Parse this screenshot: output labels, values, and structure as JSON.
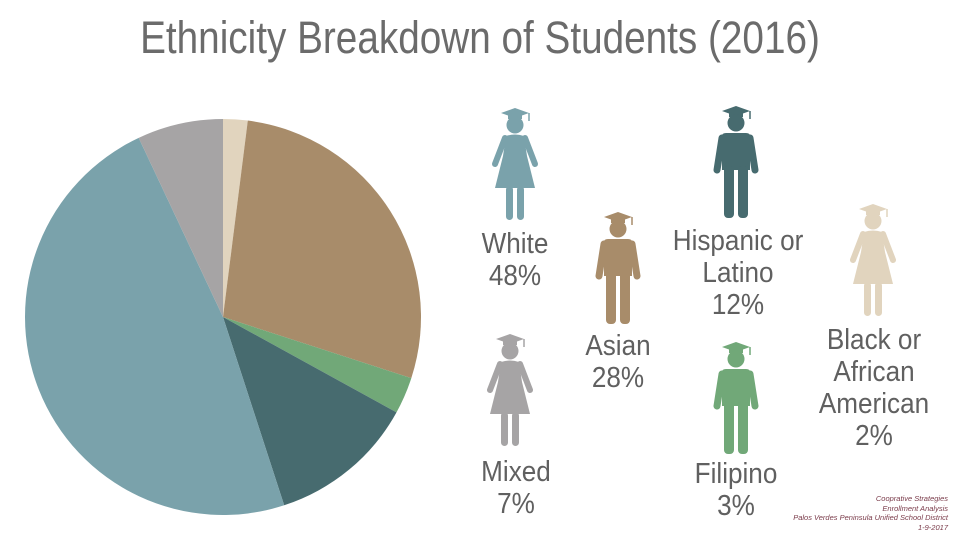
{
  "title": "Ethnicity Breakdown of Students (2016)",
  "chart_data": {
    "type": "pie",
    "title": "Ethnicity Breakdown of Students (2016)",
    "categories": [
      "White",
      "Asian",
      "Hispanic or Latino",
      "Black or African American",
      "Mixed",
      "Filipino"
    ],
    "values": [
      48,
      28,
      12,
      2,
      7,
      3
    ],
    "unit": "%",
    "slices": [
      {
        "category": "Black or African American",
        "value": 2,
        "color": "#e1d4be"
      },
      {
        "category": "Asian",
        "value": 28,
        "color": "#a88c6a"
      },
      {
        "category": "Filipino",
        "value": 3,
        "color": "#71a878"
      },
      {
        "category": "Hispanic or Latino",
        "value": 12,
        "color": "#476b6f"
      },
      {
        "category": "White",
        "value": 48,
        "color": "#7aa2ab"
      },
      {
        "category": "Mixed",
        "value": 7,
        "color": "#a6a4a5"
      }
    ],
    "legend": "icon labels to the right of the pie"
  },
  "legend_items": [
    {
      "key": "white",
      "label_lines": [
        "White",
        "48%"
      ],
      "figure": "female-student-icon",
      "color": "#7aa2ab"
    },
    {
      "key": "asian",
      "label_lines": [
        "Asian",
        "28%"
      ],
      "figure": "male-student-icon",
      "color": "#a88c6a"
    },
    {
      "key": "hispanic",
      "label_lines": [
        "Hispanic or",
        "Latino",
        "12%"
      ],
      "figure": "male-student-icon",
      "color": "#476b6f"
    },
    {
      "key": "black",
      "label_lines": [
        "Black or",
        "African",
        "American",
        "2%"
      ],
      "figure": "female-student-icon",
      "color": "#e1d4be"
    },
    {
      "key": "mixed",
      "label_lines": [
        "Mixed",
        "7%"
      ],
      "figure": "female-student-icon",
      "color": "#a6a4a5"
    },
    {
      "key": "filipino",
      "label_lines": [
        "Filipino",
        "3%"
      ],
      "figure": "male-student-icon",
      "color": "#71a878"
    }
  ],
  "credit": {
    "line1": "Cooprative Strategies",
    "line2": "Enrollment Analysis",
    "line3": "Palos Verdes Peninsula Unified School District",
    "line4": "1-9-2017"
  }
}
